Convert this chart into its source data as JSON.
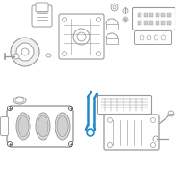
{
  "bg_color": "#ffffff",
  "highlight_color": "#2288cc",
  "line_color": "#999999",
  "dark_color": "#555555",
  "fig_size": [
    2.0,
    2.0
  ],
  "dpi": 100
}
